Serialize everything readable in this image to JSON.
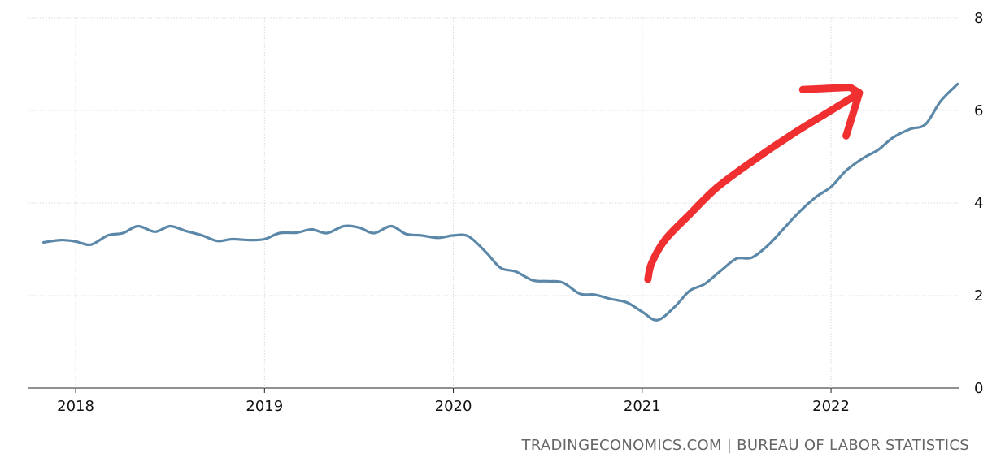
{
  "chart_data": {
    "type": "line",
    "title": "",
    "xlabel": "",
    "ylabel": "",
    "xlim": [
      2017.75,
      2022.68
    ],
    "ylim": [
      0,
      8
    ],
    "yticks": [
      0,
      2,
      4,
      6,
      8
    ],
    "xticks": [
      "2018",
      "2019",
      "2020",
      "2021",
      "2022"
    ],
    "grid": true,
    "y_axis_side": "right",
    "series": [
      {
        "color": "#5b88a8",
        "points": [
          [
            2017.83,
            3.15
          ],
          [
            2017.92,
            3.2
          ],
          [
            2018.0,
            3.17
          ],
          [
            2018.08,
            3.1
          ],
          [
            2018.17,
            3.3
          ],
          [
            2018.25,
            3.35
          ],
          [
            2018.33,
            3.5
          ],
          [
            2018.42,
            3.38
          ],
          [
            2018.5,
            3.5
          ],
          [
            2018.58,
            3.4
          ],
          [
            2018.67,
            3.3
          ],
          [
            2018.75,
            3.18
          ],
          [
            2018.83,
            3.22
          ],
          [
            2018.92,
            3.2
          ],
          [
            2019.0,
            3.22
          ],
          [
            2019.08,
            3.35
          ],
          [
            2019.17,
            3.36
          ],
          [
            2019.25,
            3.43
          ],
          [
            2019.33,
            3.35
          ],
          [
            2019.42,
            3.5
          ],
          [
            2019.5,
            3.47
          ],
          [
            2019.58,
            3.35
          ],
          [
            2019.67,
            3.5
          ],
          [
            2019.75,
            3.33
          ],
          [
            2019.83,
            3.3
          ],
          [
            2019.92,
            3.25
          ],
          [
            2020.0,
            3.3
          ],
          [
            2020.08,
            3.28
          ],
          [
            2020.17,
            2.95
          ],
          [
            2020.25,
            2.6
          ],
          [
            2020.33,
            2.52
          ],
          [
            2020.42,
            2.33
          ],
          [
            2020.5,
            2.31
          ],
          [
            2020.58,
            2.28
          ],
          [
            2020.67,
            2.04
          ],
          [
            2020.75,
            2.02
          ],
          [
            2020.83,
            1.93
          ],
          [
            2020.92,
            1.85
          ],
          [
            2021.0,
            1.65
          ],
          [
            2021.08,
            1.47
          ],
          [
            2021.17,
            1.75
          ],
          [
            2021.25,
            2.1
          ],
          [
            2021.33,
            2.25
          ],
          [
            2021.42,
            2.55
          ],
          [
            2021.5,
            2.8
          ],
          [
            2021.58,
            2.82
          ],
          [
            2021.67,
            3.1
          ],
          [
            2021.75,
            3.45
          ],
          [
            2021.83,
            3.8
          ],
          [
            2021.92,
            4.13
          ],
          [
            2022.0,
            4.35
          ],
          [
            2022.08,
            4.7
          ],
          [
            2022.17,
            4.97
          ],
          [
            2022.25,
            5.15
          ],
          [
            2022.33,
            5.42
          ],
          [
            2022.42,
            5.6
          ],
          [
            2022.5,
            5.7
          ],
          [
            2022.58,
            6.2
          ],
          [
            2022.67,
            6.57
          ]
        ]
      }
    ],
    "annotations": [
      {
        "type": "hand-drawn-arrow",
        "color": "#f03030",
        "points": [
          [
            2021.03,
            2.35
          ],
          [
            2021.05,
            2.7
          ],
          [
            2021.12,
            3.2
          ],
          [
            2021.25,
            3.75
          ],
          [
            2021.4,
            4.35
          ],
          [
            2021.6,
            4.95
          ],
          [
            2021.8,
            5.5
          ],
          [
            2021.98,
            5.95
          ],
          [
            2022.12,
            6.3
          ]
        ],
        "arrowhead": [
          [
            2021.85,
            6.45
          ],
          [
            2022.1,
            6.5
          ],
          [
            2022.15,
            6.38
          ],
          [
            2022.08,
            5.45
          ]
        ]
      }
    ]
  },
  "source_text": "TRADINGECONOMICS.COM | BUREAU OF LABOR STATISTICS"
}
